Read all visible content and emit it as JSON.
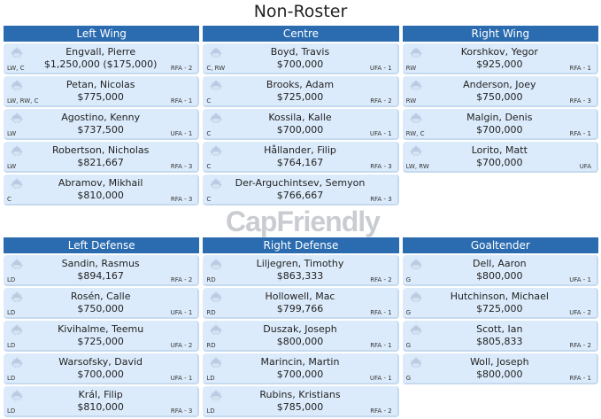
{
  "title": "Non-Roster",
  "watermark": "CapFriendly",
  "colors": {
    "header": "#2b6cb0",
    "card": "#dcebfb"
  },
  "top": [
    {
      "label": "Left Wing",
      "players": [
        {
          "name": "Engvall, Pierre",
          "salary": "$1,250,000 ($175,000)",
          "pos": "LW, C",
          "status": "RFA - 2"
        },
        {
          "name": "Petan, Nicolas",
          "salary": "$775,000",
          "pos": "LW, RW, C",
          "status": "RFA - 1"
        },
        {
          "name": "Agostino, Kenny",
          "salary": "$737,500",
          "pos": "LW",
          "status": "UFA - 1"
        },
        {
          "name": "Robertson, Nicholas",
          "salary": "$821,667",
          "pos": "LW",
          "status": "RFA - 3"
        },
        {
          "name": "Abramov, Mikhail",
          "salary": "$810,000",
          "pos": "C",
          "status": "RFA - 3"
        }
      ]
    },
    {
      "label": "Centre",
      "players": [
        {
          "name": "Boyd, Travis",
          "salary": "$700,000",
          "pos": "C, RW",
          "status": "UFA - 1"
        },
        {
          "name": "Brooks, Adam",
          "salary": "$725,000",
          "pos": "C",
          "status": "RFA - 2"
        },
        {
          "name": "Kossila, Kalle",
          "salary": "$700,000",
          "pos": "C",
          "status": "UFA - 1"
        },
        {
          "name": "Hållander, Filip",
          "salary": "$764,167",
          "pos": "C",
          "status": "RFA - 3"
        },
        {
          "name": "Der-Arguchintsev, Semyon",
          "salary": "$766,667",
          "pos": "C",
          "status": "RFA - 3"
        }
      ]
    },
    {
      "label": "Right Wing",
      "players": [
        {
          "name": "Korshkov, Yegor",
          "salary": "$925,000",
          "pos": "RW",
          "status": "RFA - 1"
        },
        {
          "name": "Anderson, Joey",
          "salary": "$750,000",
          "pos": "RW",
          "status": "RFA - 3"
        },
        {
          "name": "Malgin, Denis",
          "salary": "$700,000",
          "pos": "RW, C",
          "status": "RFA - 1"
        },
        {
          "name": "Lorito, Matt",
          "salary": "$700,000",
          "pos": "LW, RW",
          "status": "UFA"
        }
      ]
    }
  ],
  "bottom": [
    {
      "label": "Left Defense",
      "players": [
        {
          "name": "Sandin, Rasmus",
          "salary": "$894,167",
          "pos": "LD",
          "status": "RFA - 2"
        },
        {
          "name": "Rosén, Calle",
          "salary": "$750,000",
          "pos": "LD",
          "status": "UFA - 1"
        },
        {
          "name": "Kivihalme, Teemu",
          "salary": "$725,000",
          "pos": "LD",
          "status": "UFA - 2"
        },
        {
          "name": "Warsofsky, David",
          "salary": "$700,000",
          "pos": "LD",
          "status": "UFA - 1"
        },
        {
          "name": "Král, Filip",
          "salary": "$810,000",
          "pos": "LD",
          "status": "RFA - 3"
        }
      ]
    },
    {
      "label": "Right Defense",
      "players": [
        {
          "name": "Liljegren, Timothy",
          "salary": "$863,333",
          "pos": "RD",
          "status": "RFA - 2"
        },
        {
          "name": "Hollowell, Mac",
          "salary": "$799,766",
          "pos": "RD",
          "status": "RFA - 1"
        },
        {
          "name": "Duszak, Joseph",
          "salary": "$800,000",
          "pos": "RD",
          "status": "RFA - 1"
        },
        {
          "name": "Marincin, Martin",
          "salary": "$700,000",
          "pos": "LD",
          "status": "UFA - 1"
        },
        {
          "name": "Rubins, Kristians",
          "salary": "$785,000",
          "pos": "LD",
          "status": "RFA - 2"
        }
      ]
    },
    {
      "label": "Goaltender",
      "players": [
        {
          "name": "Dell, Aaron",
          "salary": "$800,000",
          "pos": "G",
          "status": "UFA - 1"
        },
        {
          "name": "Hutchinson, Michael",
          "salary": "$725,000",
          "pos": "G",
          "status": "UFA - 2"
        },
        {
          "name": "Scott, Ian",
          "salary": "$805,833",
          "pos": "G",
          "status": "RFA - 2"
        },
        {
          "name": "Woll, Joseph",
          "salary": "$800,000",
          "pos": "G",
          "status": "RFA - 1"
        }
      ]
    }
  ]
}
